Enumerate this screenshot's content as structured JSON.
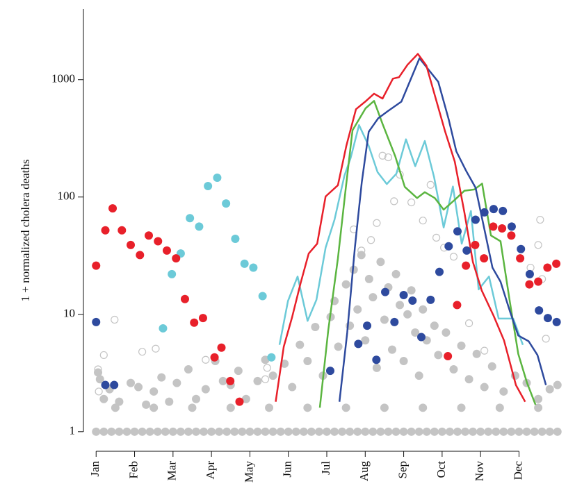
{
  "chart_data": {
    "type": "scatter",
    "y_label": "1 + normalized cholera deaths",
    "log_y": true,
    "xlim": [
      -0.33,
      12.33
    ],
    "ylim": [
      0.7,
      4000
    ],
    "xticks": [
      {
        "value": 0,
        "label": "Jan"
      },
      {
        "value": 1,
        "label": "Feb"
      },
      {
        "value": 2,
        "label": "Mar"
      },
      {
        "value": 3,
        "label": "Apr"
      },
      {
        "value": 4,
        "label": "May"
      },
      {
        "value": 5,
        "label": "Jun"
      },
      {
        "value": 6,
        "label": "Jul"
      },
      {
        "value": 7,
        "label": "Aug"
      },
      {
        "value": 8,
        "label": "Sep"
      },
      {
        "value": 9,
        "label": "Oct"
      },
      {
        "value": 10,
        "label": "Nov"
      },
      {
        "value": 11,
        "label": "Dec"
      }
    ],
    "yticks": [
      1,
      10,
      100,
      1000
    ],
    "series": [
      {
        "mode": "marker",
        "color": "#c4c4c4",
        "hollow": false,
        "x": [
          0,
          0.2,
          0.4,
          0.6,
          0.8,
          1,
          1.2,
          1.4,
          1.6,
          1.8,
          2,
          2.2,
          2.4,
          2.6,
          2.8,
          3,
          3.2,
          3.4,
          3.6,
          3.8,
          4,
          4.2,
          4.4,
          4.6,
          4.8,
          5,
          5.2,
          5.4,
          5.6,
          5.8,
          6,
          6.2,
          6.4,
          6.6,
          6.8,
          7,
          7.2,
          7.4,
          7.6,
          7.8,
          8,
          8.2,
          8.4,
          8.6,
          8.8,
          9,
          9.2,
          9.4,
          9.6,
          9.8,
          10,
          10.2,
          10.4,
          10.6,
          10.8,
          11,
          11.2,
          11.4,
          11.6,
          11.8,
          12
        ],
        "values": [
          1,
          1,
          1,
          1,
          1,
          1,
          1,
          1,
          1,
          1,
          1,
          1,
          1,
          1,
          1,
          1,
          1,
          1,
          1,
          1,
          1,
          1,
          1,
          1,
          1,
          1,
          1,
          1,
          1,
          1,
          1,
          1,
          1,
          1,
          1,
          1,
          1,
          1,
          1,
          1,
          1,
          1,
          1,
          1,
          1,
          1,
          1,
          1,
          1,
          1,
          1,
          1,
          1,
          1,
          1,
          1,
          1,
          1,
          1,
          1,
          1
        ]
      },
      {
        "mode": "marker",
        "color": "#c4c4c4",
        "hollow": false,
        "x": [
          0.05,
          0.1,
          0.2,
          0.35,
          0.6,
          0.9,
          1.1,
          1.3,
          1.5,
          1.7,
          1.9,
          2.1,
          2.4,
          2.6,
          2.85,
          3.1,
          3.3,
          3.5,
          3.7,
          3.9,
          4.2,
          4.4,
          4.6,
          4.9,
          5.1,
          5.3,
          5.5,
          5.7,
          5.9,
          6.1,
          6.2,
          6.3,
          6.5,
          6.6,
          6.7,
          6.8,
          6.9,
          7.0,
          7.1,
          7.2,
          7.3,
          7.4,
          7.5,
          7.6,
          7.7,
          7.8,
          7.9,
          8.0,
          8.1,
          8.2,
          8.3,
          8.4,
          8.5,
          8.6,
          8.8,
          8.9,
          9.1,
          9.3,
          9.5,
          9.7,
          9.9,
          10.1,
          10.3,
          10.6,
          10.9,
          11.2,
          11.5,
          11.8,
          12,
          0.5,
          1.5,
          2.5,
          3.5,
          4.5,
          5.5,
          6.5,
          7.5,
          8.5,
          9.5,
          10.5,
          11.5
        ],
        "values": [
          3.2,
          2.8,
          1.9,
          2.3,
          1.8,
          2.6,
          2.4,
          1.7,
          2.2,
          2.9,
          1.8,
          2.6,
          3.4,
          1.9,
          2.3,
          4.0,
          2.7,
          2.5,
          3.3,
          1.9,
          2.7,
          4.1,
          3.0,
          3.8,
          2.4,
          5.5,
          4.0,
          7.8,
          3.0,
          9.5,
          13,
          5.3,
          18,
          8,
          24,
          11,
          32,
          6,
          20,
          14,
          3.5,
          28,
          9,
          17,
          5,
          22,
          12,
          4,
          10,
          16,
          7,
          3,
          11,
          6,
          8,
          4.5,
          7,
          3.4,
          5.4,
          2.8,
          4.6,
          2.4,
          3.6,
          2.2,
          3.0,
          2.6,
          1.9,
          2.3,
          2.5,
          1.6,
          1.6,
          1.6,
          1.6,
          1.6,
          1.6,
          1.6,
          1.6,
          1.6,
          1.6,
          1.6,
          1.6
        ]
      },
      {
        "mode": "marker",
        "color": "#c4c4c4",
        "hollow": true,
        "x": [
          0.07,
          0.05,
          0.2,
          0.48,
          1.2,
          1.55,
          2.85,
          4.4,
          4.45,
          6.7,
          6.9,
          7.15,
          7.3,
          7.45,
          7.6,
          7.75,
          7.9,
          8.2,
          8.5,
          8.7,
          8.85,
          9.05,
          9.3,
          9.7,
          10.1,
          11.3,
          11.5,
          11.55,
          11.6,
          11.7
        ],
        "values": [
          2.2,
          3.4,
          4.5,
          9,
          4.8,
          5.1,
          4.1,
          2.8,
          3.5,
          53,
          35,
          43,
          60,
          225,
          218,
          92,
          155,
          90,
          63,
          127,
          45,
          37,
          31,
          8.4,
          4.9,
          25,
          39,
          64,
          20,
          6.2
        ]
      },
      {
        "mode": "line",
        "color": "#6ccad8",
        "x": [
          4.77,
          4.99,
          5.24,
          5.5,
          5.73,
          5.97,
          6.2,
          6.46,
          6.62,
          6.84,
          7.09,
          7.32,
          7.56,
          7.81,
          8.06,
          8.3,
          8.55,
          8.79,
          9.04,
          9.28,
          9.51,
          9.75,
          9.95,
          10.22,
          10.47,
          10.85,
          11.1
        ],
        "values": [
          5.5,
          13,
          21,
          8.8,
          13.3,
          37,
          64,
          152,
          215,
          410,
          273,
          163,
          129,
          158,
          310,
          183,
          300,
          148,
          55,
          123,
          40,
          76,
          16.3,
          21,
          9.2,
          9.2,
          5.5
        ]
      },
      {
        "mode": "line",
        "color": "#5bb540",
        "x": [
          5.82,
          6.04,
          6.29,
          6.49,
          6.67,
          7.01,
          7.23,
          7.45,
          7.78,
          8.03,
          8.35,
          8.55,
          8.81,
          9.04,
          9.35,
          9.58,
          9.84,
          10.04,
          10.27,
          10.52,
          10.76,
          10.98,
          11.21,
          11.43
        ],
        "values": [
          1.6,
          7.4,
          30,
          116,
          370,
          570,
          660,
          420,
          223,
          122,
          98,
          110,
          98,
          78,
          96,
          113,
          116,
          130,
          47,
          42,
          12.9,
          4.6,
          2.6,
          1.7
        ]
      },
      {
        "mode": "line",
        "color": "#2e4a9e",
        "x": [
          6.33,
          6.53,
          6.73,
          6.91,
          7.09,
          7.34,
          7.59,
          7.94,
          8.41,
          8.9,
          9.17,
          9.37,
          9.62,
          9.87,
          10.1,
          10.31,
          10.52,
          10.76,
          10.98,
          11.25,
          11.48,
          11.7
        ],
        "values": [
          1.8,
          6.9,
          37,
          133,
          360,
          470,
          540,
          650,
          1520,
          960,
          460,
          245,
          168,
          120,
          53,
          25,
          19,
          10.7,
          6.6,
          5.9,
          4.5,
          2.5
        ]
      },
      {
        "mode": "line",
        "color": "#e8202a",
        "x": [
          4.67,
          4.88,
          5.1,
          5.32,
          5.53,
          5.75,
          5.97,
          6.29,
          6.51,
          6.76,
          7.0,
          7.23,
          7.45,
          7.72,
          7.88,
          8.1,
          8.37,
          8.59,
          9.08,
          9.33,
          9.58,
          9.8,
          10.03,
          10.34,
          10.61,
          10.92,
          11.16
        ],
        "values": [
          1.8,
          5.3,
          9.5,
          18.5,
          33,
          40,
          101,
          126,
          274,
          560,
          650,
          760,
          690,
          1020,
          1050,
          1340,
          1660,
          1320,
          360,
          200,
          74,
          28,
          16,
          9.7,
          6,
          2.5,
          1.8
        ]
      },
      {
        "mode": "marker",
        "color": "#6ccad8",
        "hollow": false,
        "x": [
          1.74,
          1.97,
          2.2,
          2.44,
          2.68,
          2.91,
          3.15,
          3.38,
          3.62,
          3.86,
          4.09,
          4.33,
          4.56
        ],
        "values": [
          7.6,
          22,
          33,
          66,
          56,
          124,
          146,
          88,
          44,
          27,
          25,
          14.3,
          4.3
        ]
      },
      {
        "mode": "marker",
        "color": "#2e4a9e",
        "hollow": false,
        "x": [
          0,
          0.24,
          0.47,
          6.09,
          6.82,
          7.05,
          7.29,
          7.52,
          7.76,
          8.0,
          8.23,
          8.46,
          8.7,
          8.93,
          9.17,
          9.4,
          9.64,
          9.87,
          10.1,
          10.34,
          10.58,
          10.81,
          11.05,
          11.28,
          11.52,
          11.75,
          11.98
        ],
        "values": [
          8.6,
          2.5,
          2.5,
          3.3,
          5.6,
          8,
          4.1,
          15.5,
          8.6,
          14.6,
          13.1,
          6.4,
          13.3,
          23,
          38,
          51,
          35,
          64,
          74,
          79,
          76,
          56,
          36,
          22,
          10.8,
          9.3,
          8.6
        ]
      },
      {
        "mode": "marker",
        "color": "#e8202a",
        "hollow": false,
        "x": [
          0,
          0.24,
          0.43,
          0.67,
          0.9,
          1.14,
          1.37,
          1.61,
          1.84,
          2.08,
          2.31,
          2.55,
          2.78,
          3.08,
          3.26,
          3.49,
          3.73,
          9.15,
          9.39,
          9.62,
          9.86,
          10.09,
          10.33,
          10.56,
          10.8,
          11.03,
          11.27,
          11.5,
          11.74,
          11.97
        ],
        "values": [
          26,
          52,
          80,
          52,
          39,
          32,
          47,
          42,
          35,
          30,
          13.5,
          8.5,
          9.3,
          4.3,
          5.2,
          2.7,
          1.8,
          4.4,
          12,
          26,
          39,
          30,
          56,
          54,
          47,
          30,
          18,
          19,
          25,
          27
        ]
      }
    ]
  }
}
